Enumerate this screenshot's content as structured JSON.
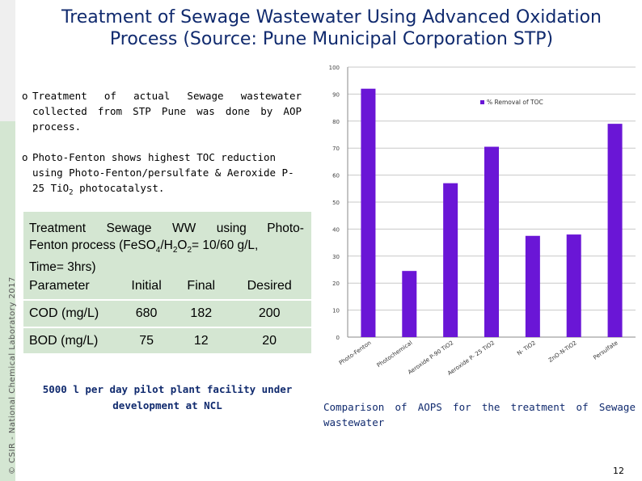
{
  "sidebar": {
    "copyright": "© CSIR - National Chemical Laboratory 2017"
  },
  "title": {
    "line1": "Treatment of Sewage Wastewater Using Advanced Oxidation",
    "line2": "Process (Source: Pune Municipal Corporation STP)"
  },
  "bullets": [
    {
      "mark": "o",
      "text": "Treatment of actual Sewage wastewater collected from STP Pune was done by AOP process."
    },
    {
      "mark": "o",
      "line1": "Photo-Fenton shows highest TOC reduction",
      "line2": "using Photo-Fenton/persulfate & Aeroxide P-",
      "line3a": "25 TiO",
      "line3sub": "2",
      "line3b": " photocatalyst."
    }
  ],
  "panel": {
    "caption_words": [
      "Treatment",
      "Sewage",
      "WW",
      "using",
      "Photo-"
    ],
    "caption_line2_a": "Fenton process (FeSO",
    "caption_line2_sub1": "4",
    "caption_line2_b": "/H",
    "caption_line2_sub2": "2",
    "caption_line2_c": "O",
    "caption_line2_sub3": "2",
    "caption_line2_d": "= 10/60 g/L,",
    "caption_line3": "Time= 3hrs)",
    "table": {
      "headers": [
        "Parameter",
        "Initial",
        "Final",
        "Desired"
      ],
      "rows": [
        [
          "COD (mg/L)",
          "680",
          "182",
          "200"
        ],
        [
          "BOD (mg/L)",
          "75",
          "12",
          "20"
        ]
      ]
    }
  },
  "pilot_note": "5000 l per day pilot plant facility under development at NCL",
  "chart_data": {
    "type": "bar",
    "categories": [
      "Photo-Fenton",
      "Photochemical",
      "Aeroxide P-90 TiO2",
      "Aeroxide P- 25 TiO2",
      "N- TiO2",
      "ZnO-N-TiO2",
      "Persulfate"
    ],
    "series": [
      {
        "name": "% Removal of TOC",
        "values": [
          92,
          24.5,
          57,
          70.5,
          37.5,
          38,
          79
        ]
      }
    ],
    "yticks": [
      "0",
      "10",
      "20",
      "30",
      "40",
      "50",
      "60",
      "70",
      "80",
      "90",
      "100"
    ],
    "ylim": [
      0,
      100
    ],
    "grid": true,
    "legend": "top-right",
    "bar_color": "#6a16d6",
    "grid_color": "#c8c8c8"
  },
  "figure_caption": {
    "line1_words": [
      "Comparison",
      "of",
      "AOPS",
      "for",
      "the",
      "treatment",
      "of",
      "Sewage"
    ],
    "line2": "wastewater"
  },
  "page_number": "12",
  "colors": {
    "title": "#102a6e",
    "panel": "#d4e6d2",
    "sidebar_top": "#efefef"
  }
}
